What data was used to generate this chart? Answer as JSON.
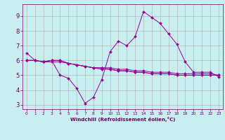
{
  "x": [
    0,
    1,
    2,
    3,
    4,
    5,
    6,
    7,
    8,
    9,
    10,
    11,
    12,
    13,
    14,
    15,
    16,
    17,
    18,
    19,
    20,
    21,
    22,
    23
  ],
  "line1": [
    6.5,
    6.0,
    5.9,
    6.0,
    5.0,
    4.8,
    4.1,
    3.1,
    3.5,
    4.7,
    6.6,
    7.3,
    7.0,
    7.6,
    9.3,
    8.9,
    8.5,
    7.8,
    7.1,
    5.9,
    5.2,
    5.2,
    5.2,
    4.9
  ],
  "line2": [
    6.0,
    6.0,
    5.9,
    6.0,
    6.0,
    5.8,
    5.7,
    5.6,
    5.5,
    5.5,
    5.5,
    5.4,
    5.4,
    5.3,
    5.3,
    5.2,
    5.2,
    5.2,
    5.1,
    5.1,
    5.1,
    5.1,
    5.1,
    5.0
  ],
  "line3": [
    6.0,
    6.0,
    5.9,
    6.0,
    6.0,
    5.8,
    5.7,
    5.6,
    5.5,
    5.5,
    5.4,
    5.3,
    5.3,
    5.2,
    5.2,
    5.1,
    5.1,
    5.1,
    5.0,
    5.0,
    5.0,
    5.0,
    5.0,
    5.0
  ],
  "line4": [
    6.0,
    6.0,
    5.9,
    5.9,
    5.9,
    5.8,
    5.7,
    5.6,
    5.5,
    5.4,
    5.4,
    5.3,
    5.3,
    5.2,
    5.2,
    5.1,
    5.1,
    5.1,
    5.0,
    5.0,
    5.0,
    5.0,
    5.0,
    5.0
  ],
  "line_color": "#990099",
  "bg_color": "#c8eef0",
  "grid_color": "#b0b0b0",
  "xlabel": "Windchill (Refroidissement éolien,°C)",
  "xlabel_color": "#660066",
  "tick_color": "#660066",
  "ylim": [
    2.7,
    9.8
  ],
  "yticks": [
    3,
    4,
    5,
    6,
    7,
    8,
    9
  ],
  "xticks": [
    0,
    1,
    2,
    3,
    4,
    5,
    6,
    7,
    8,
    9,
    10,
    11,
    12,
    13,
    14,
    15,
    16,
    17,
    18,
    19,
    20,
    21,
    22,
    23
  ],
  "marker": "D",
  "markersize": 2.0,
  "linewidth": 0.7
}
